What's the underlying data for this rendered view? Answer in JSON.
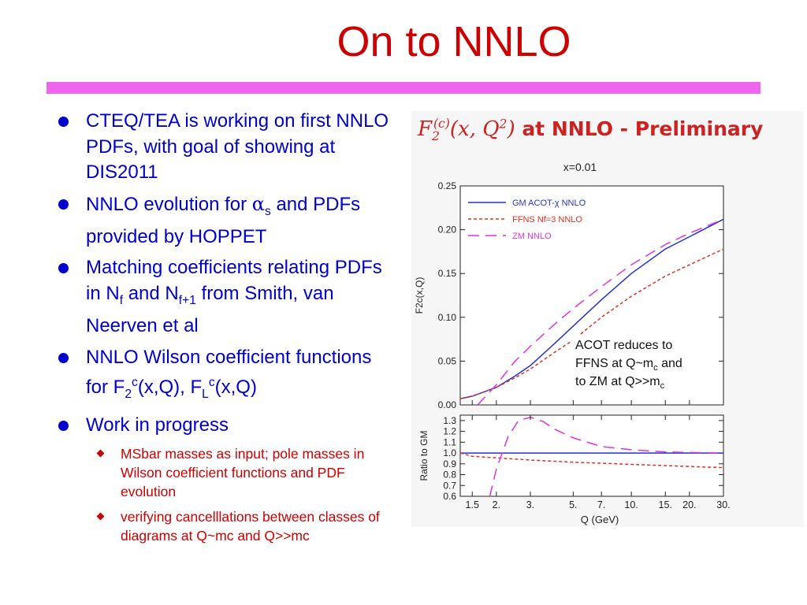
{
  "slide": {
    "title": "On to NNLO"
  },
  "bullets": {
    "b1": "CTEQ/TEA is working on first NNLO PDFs, with goal of showing at DIS2011",
    "b2": {
      "pre": "NNLO evolution for ",
      "alpha": "α",
      "sub": "s",
      "post": " and PDFs provided by HOPPET"
    },
    "b3": {
      "pre": "Matching coefficients relating PDFs in N",
      "sub1": "f",
      "mid": " and N",
      "sub2": "f+1",
      "post": " from Smith, van Neerven et al"
    },
    "b4": {
      "pre": "NNLO Wilson coefficient functions for F",
      "sub1": "2",
      "sup1": "c",
      "mid": "(x,Q), F",
      "sub2": "L",
      "sup2": "c",
      "post": "(x,Q)"
    },
    "b5": "Work in progress",
    "sub_bullets": [
      "MSbar masses as input; pole masses in Wilson coefficient functions and PDF evolution",
      "verifying cancelllations between classes of diagrams at Q~mc and Q>>mc"
    ]
  },
  "figure": {
    "heading_math": "F",
    "heading_math_sub": "2",
    "heading_math_sup": "(c)",
    "heading_math_args": "(x, Q",
    "heading_math_pow": "2",
    "heading_math_close": ")",
    "heading_text": " at NNLO - Preliminary",
    "annotation_lines": [
      "ACOT reduces to",
      "FFNS at Q~m",
      "c",
      " and",
      "to ZM at Q>>m",
      "c"
    ]
  },
  "chart_data": [
    {
      "type": "line",
      "title": "x=0.01",
      "ylabel": "F2c(x,Q)",
      "xlabel": "",
      "log_x": true,
      "xlim": [
        1.3,
        30
      ],
      "ylim": [
        0,
        0.25
      ],
      "yticks": [
        "0.00",
        "0.05",
        "0.10",
        "0.15",
        "0.20",
        "0.25"
      ],
      "ytick_values": [
        0,
        0.05,
        0.1,
        0.15,
        0.2,
        0.25
      ],
      "grid": false,
      "legend_position": "top-left",
      "series": [
        {
          "name": "GM ACOT-χ NNLO",
          "color": "#2233cc",
          "dash": "",
          "x": [
            1.3,
            1.5,
            2,
            2.5,
            3,
            4,
            5,
            7,
            10,
            15,
            20,
            30
          ],
          "y": [
            0.007,
            0.01,
            0.02,
            0.033,
            0.045,
            0.07,
            0.09,
            0.12,
            0.15,
            0.178,
            0.192,
            0.212
          ]
        },
        {
          "name": "FFNS Nf=3 NNLO",
          "color": "#dd3322",
          "dash": "4,3",
          "x": [
            1.3,
            1.5,
            2,
            2.5,
            3,
            4,
            5,
            7,
            10,
            15,
            20,
            30
          ],
          "y": [
            0.007,
            0.01,
            0.02,
            0.031,
            0.041,
            0.06,
            0.074,
            0.1,
            0.124,
            0.147,
            0.16,
            0.178
          ]
        },
        {
          "name": "ZM NNLO",
          "color": "#dd33dd",
          "dash": "14,8",
          "x": [
            1.6,
            2,
            2.5,
            3,
            4,
            5,
            7,
            10,
            15,
            20,
            30
          ],
          "y": [
            0.0,
            0.023,
            0.05,
            0.067,
            0.092,
            0.11,
            0.135,
            0.16,
            0.183,
            0.196,
            0.212
          ]
        }
      ]
    },
    {
      "type": "line",
      "ylabel": "Ratio to GM",
      "xlabel": "Q (GeV)",
      "log_x": true,
      "xlim": [
        1.3,
        30
      ],
      "ylim": [
        0.6,
        1.35
      ],
      "xticks": [
        "1.5",
        "2.",
        "3.",
        "5.",
        "7.",
        "10.",
        "15.",
        "20.",
        "30."
      ],
      "xtick_values": [
        1.5,
        2,
        3,
        5,
        7,
        10,
        15,
        20,
        30
      ],
      "yticks": [
        "0.6",
        "0.7",
        "0.8",
        "0.9",
        "1.0",
        "1.1",
        "1.2",
        "1.3"
      ],
      "ytick_values": [
        0.6,
        0.7,
        0.8,
        0.9,
        1.0,
        1.1,
        1.2,
        1.3
      ],
      "grid": false,
      "series": [
        {
          "name": "GM ACOT-χ NNLO",
          "color": "#2233cc",
          "dash": "",
          "x": [
            1.3,
            30
          ],
          "y": [
            1.0,
            1.0
          ]
        },
        {
          "name": "FFNS Nf=3 NNLO",
          "color": "#dd3322",
          "dash": "4,3",
          "x": [
            1.3,
            1.5,
            2,
            3,
            5,
            10,
            20,
            30
          ],
          "y": [
            1.0,
            0.97,
            0.955,
            0.935,
            0.915,
            0.895,
            0.875,
            0.865
          ]
        },
        {
          "name": "ZM NNLO",
          "color": "#dd33dd",
          "dash": "14,8",
          "x": [
            1.85,
            2,
            2.3,
            2.6,
            3,
            3.5,
            4,
            5,
            7,
            10,
            15,
            20,
            30
          ],
          "y": [
            0.6,
            0.85,
            1.15,
            1.3,
            1.33,
            1.29,
            1.22,
            1.14,
            1.06,
            1.03,
            1.01,
            1.005,
            1.0
          ]
        }
      ]
    }
  ]
}
